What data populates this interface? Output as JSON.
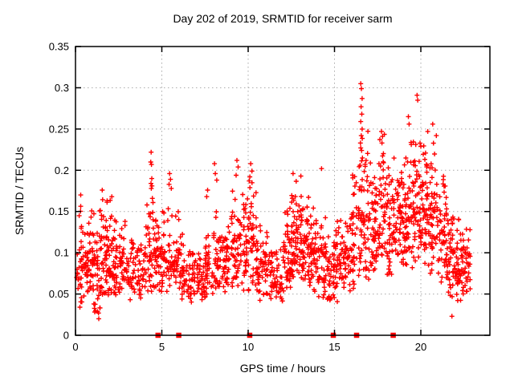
{
  "chart_data": {
    "type": "scatter",
    "title": "Day 202 of 2019, SRMTID for receiver sarm",
    "xlabel": "GPS time / hours",
    "ylabel": "SRMTID / TECUs",
    "xlim": [
      0,
      24
    ],
    "ylim": [
      0,
      0.35
    ],
    "xticks": {
      "values": [
        0,
        5,
        10,
        15,
        20
      ],
      "labels": [
        "0",
        "5",
        "10",
        "15",
        "20"
      ]
    },
    "yticks": {
      "values": [
        0,
        0.05,
        0.1,
        0.15,
        0.2,
        0.25,
        0.3,
        0.35
      ],
      "labels": [
        "0",
        "0.05",
        "0.1",
        "0.15",
        "0.2",
        "0.25",
        "0.3",
        "0.35"
      ]
    },
    "grid": {
      "shown": true,
      "style": "dotted",
      "color": "#a8a8a8"
    },
    "legend": "none",
    "background": "#ffffff",
    "border_color": "#000000",
    "observed": {
      "x_min": 0.05,
      "x_max": 22.9,
      "y_min": 0.02,
      "y_max": 0.305
    },
    "series": [
      {
        "name": "srmtid-values",
        "marker": "plus",
        "color": "#ff0000",
        "marker_size": 7,
        "seed": 202,
        "clusters": [
          [
            0.05,
            0.5,
            40,
            0.03,
            0.165
          ],
          [
            0.5,
            1,
            46,
            0.04,
            0.155
          ],
          [
            1,
            1.5,
            50,
            0.02,
            0.17
          ],
          [
            1.5,
            2,
            55,
            0.04,
            0.175
          ],
          [
            2,
            2.5,
            46,
            0.04,
            0.165
          ],
          [
            2.5,
            3,
            40,
            0.05,
            0.14
          ],
          [
            3,
            3.5,
            34,
            0.04,
            0.13
          ],
          [
            3.5,
            4,
            30,
            0.04,
            0.125
          ],
          [
            4,
            4.5,
            40,
            0.05,
            0.185
          ],
          [
            4.5,
            5,
            46,
            0.05,
            0.16
          ],
          [
            5,
            5.5,
            40,
            0.05,
            0.165
          ],
          [
            5.5,
            6,
            36,
            0.05,
            0.155
          ],
          [
            6,
            6.5,
            36,
            0.04,
            0.135
          ],
          [
            6.5,
            7,
            34,
            0.04,
            0.12
          ],
          [
            7,
            7.5,
            34,
            0.04,
            0.115
          ],
          [
            7.5,
            8,
            36,
            0.045,
            0.135
          ],
          [
            8,
            8.5,
            40,
            0.05,
            0.155
          ],
          [
            8.5,
            9,
            40,
            0.05,
            0.15
          ],
          [
            9,
            9.5,
            44,
            0.05,
            0.185
          ],
          [
            9.5,
            10,
            44,
            0.05,
            0.19
          ],
          [
            10,
            10.5,
            44,
            0.05,
            0.2
          ],
          [
            10.5,
            11,
            40,
            0.04,
            0.15
          ],
          [
            11,
            11.5,
            34,
            0.04,
            0.13
          ],
          [
            11.5,
            12,
            34,
            0.035,
            0.12
          ],
          [
            12,
            12.5,
            46,
            0.05,
            0.17
          ],
          [
            12.5,
            13,
            56,
            0.06,
            0.195
          ],
          [
            13,
            13.5,
            56,
            0.06,
            0.19
          ],
          [
            13.5,
            14,
            46,
            0.05,
            0.165
          ],
          [
            14,
            14.5,
            40,
            0.04,
            0.15
          ],
          [
            14.5,
            15,
            40,
            0.035,
            0.14
          ],
          [
            15,
            15.5,
            40,
            0.04,
            0.155
          ],
          [
            15.5,
            16,
            40,
            0.05,
            0.16
          ],
          [
            16,
            16.5,
            44,
            0.05,
            0.22
          ],
          [
            16.5,
            17,
            50,
            0.06,
            0.26
          ],
          [
            17,
            17.5,
            50,
            0.07,
            0.22
          ],
          [
            17.5,
            18,
            50,
            0.07,
            0.245
          ],
          [
            18,
            18.5,
            50,
            0.06,
            0.22
          ],
          [
            18.5,
            19,
            50,
            0.08,
            0.23
          ],
          [
            19,
            19.5,
            52,
            0.08,
            0.245
          ],
          [
            19.5,
            20,
            56,
            0.08,
            0.27
          ],
          [
            20,
            20.5,
            56,
            0.08,
            0.25
          ],
          [
            20.5,
            21,
            54,
            0.07,
            0.24
          ],
          [
            21,
            21.5,
            50,
            0.06,
            0.21
          ],
          [
            21.5,
            22,
            48,
            0.04,
            0.17
          ],
          [
            22,
            22.5,
            48,
            0.04,
            0.15
          ],
          [
            22.5,
            22.9,
            30,
            0.05,
            0.14
          ]
        ],
        "peaks": [
          [
            0.3,
            0.17
          ],
          [
            1.55,
            0.176
          ],
          [
            2.1,
            0.168
          ],
          [
            1.35,
            0.02
          ],
          [
            4.38,
            0.222
          ],
          [
            4.36,
            0.21
          ],
          [
            4.4,
            0.207
          ],
          [
            4.42,
            0.19
          ],
          [
            4.37,
            0.184
          ],
          [
            4.43,
            0.181
          ],
          [
            4.39,
            0.178
          ],
          [
            4.45,
            0.166
          ],
          [
            5.45,
            0.196
          ],
          [
            5.5,
            0.189
          ],
          [
            5.42,
            0.183
          ],
          [
            5.55,
            0.178
          ],
          [
            7.65,
            0.176
          ],
          [
            7.6,
            0.168
          ],
          [
            8.05,
            0.208
          ],
          [
            8.1,
            0.196
          ],
          [
            8.18,
            0.188
          ],
          [
            9.35,
            0.212
          ],
          [
            9.42,
            0.204
          ],
          [
            9.3,
            0.194
          ],
          [
            10.15,
            0.208
          ],
          [
            10.22,
            0.199
          ],
          [
            10.1,
            0.192
          ],
          [
            12.6,
            0.196
          ],
          [
            13.05,
            0.193
          ],
          [
            14.25,
            0.202
          ],
          [
            16.52,
            0.305
          ],
          [
            16.56,
            0.299
          ],
          [
            16.6,
            0.287
          ],
          [
            16.54,
            0.277
          ],
          [
            16.58,
            0.268
          ],
          [
            16.52,
            0.259
          ],
          [
            16.6,
            0.25
          ],
          [
            16.55,
            0.242
          ],
          [
            16.5,
            0.233
          ],
          [
            16.57,
            0.224
          ],
          [
            16.62,
            0.215
          ],
          [
            16.48,
            0.206
          ],
          [
            17.72,
            0.247
          ],
          [
            17.78,
            0.241
          ],
          [
            17.75,
            0.233
          ],
          [
            19.28,
            0.265
          ],
          [
            19.32,
            0.256
          ],
          [
            19.78,
            0.291
          ],
          [
            19.82,
            0.285
          ],
          [
            20.69,
            0.256
          ],
          [
            20.4,
            0.247
          ],
          [
            20.9,
            0.242
          ],
          [
            21.8,
            0.023
          ]
        ]
      },
      {
        "name": "baseline-event-markers",
        "marker": "square",
        "color": "#ff0000",
        "marker_size": 7,
        "y": 0,
        "x": [
          4.78,
          5.98,
          10.09,
          14.93,
          16.28,
          18.4
        ]
      }
    ]
  }
}
